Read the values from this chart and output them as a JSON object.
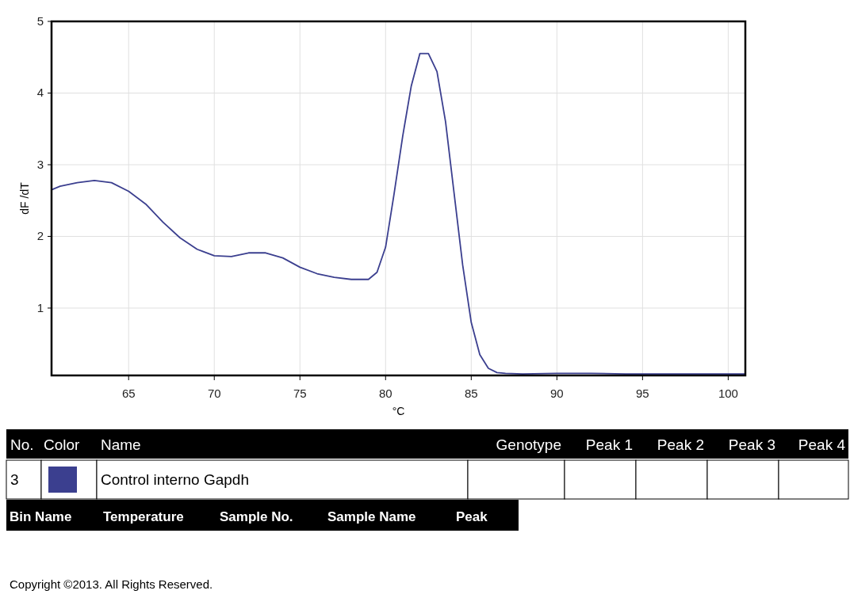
{
  "chart_data": {
    "type": "line",
    "xlabel": "°C",
    "ylabel": "dF /dT",
    "xlim": [
      60.5,
      101
    ],
    "ylim": [
      0.06,
      5
    ],
    "xticks": [
      65,
      70,
      75,
      80,
      85,
      90,
      95,
      100
    ],
    "yticks": [
      1,
      2,
      3,
      4,
      5
    ],
    "grid": true,
    "legend": "bottom",
    "series": [
      {
        "name": "Control interno Gapdh",
        "color": "#3b3f8f",
        "x": [
          60.5,
          61,
          62,
          63,
          64,
          65,
          66,
          67,
          68,
          69,
          70,
          71,
          72,
          73,
          74,
          75,
          76,
          77,
          78,
          79,
          79.5,
          80,
          80.5,
          81,
          81.5,
          82,
          82.5,
          83,
          83.5,
          84,
          84.5,
          85,
          85.5,
          86,
          86.5,
          87,
          88,
          90,
          92,
          94,
          95,
          101
        ],
        "values": [
          2.65,
          2.7,
          2.75,
          2.78,
          2.75,
          2.63,
          2.45,
          2.2,
          1.98,
          1.82,
          1.73,
          1.72,
          1.77,
          1.77,
          1.7,
          1.57,
          1.48,
          1.43,
          1.4,
          1.4,
          1.5,
          1.85,
          2.6,
          3.4,
          4.1,
          4.55,
          4.55,
          4.3,
          3.6,
          2.6,
          1.6,
          0.8,
          0.35,
          0.16,
          0.1,
          0.09,
          0.08,
          0.09,
          0.09,
          0.08,
          0.08,
          0.08
        ]
      }
    ],
    "annotations": [
      "No.",
      "Color",
      "Name",
      "Genotype",
      "Peak 1",
      "Peak 2",
      "Peak 3",
      "Peak 4",
      "3",
      "Bin Name",
      "Temperature",
      "Sample No.",
      "Sample Name",
      "Peak",
      "Copyright ©2013. All Rights Reserved."
    ]
  }
}
